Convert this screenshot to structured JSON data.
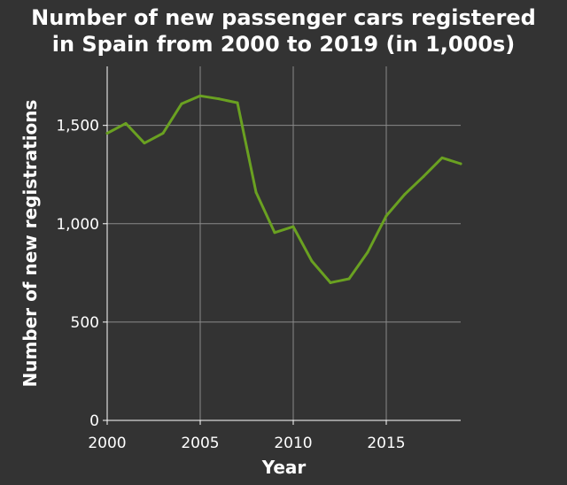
{
  "chart_data": {
    "type": "line",
    "title_lines": [
      "Number of new passenger cars registered",
      "in Spain from 2000 to 2019 (in 1,000s)"
    ],
    "xlabel": "Year",
    "ylabel": "Number of new registrations",
    "xlim": [
      2000,
      2019
    ],
    "ylim": [
      0,
      1800
    ],
    "x_ticks": [
      2000,
      2005,
      2010,
      2015
    ],
    "x_tick_labels": [
      "2000",
      "2005",
      "2010",
      "2015"
    ],
    "y_ticks": [
      0,
      500,
      1000,
      1500
    ],
    "y_tick_labels": [
      "0",
      "500",
      "1,000",
      "1,500"
    ],
    "grid": true,
    "series": [
      {
        "x": [
          2000,
          2001,
          2002,
          2003,
          2004,
          2005,
          2006,
          2007,
          2008,
          2009,
          2010,
          2011,
          2012,
          2013,
          2014,
          2015,
          2016,
          2017,
          2018,
          2019
        ],
        "y": [
          1460,
          1510,
          1410,
          1460,
          1610,
          1650,
          1635,
          1615,
          1160,
          955,
          985,
          810,
          700,
          720,
          855,
          1040,
          1150,
          1240,
          1335,
          1305
        ],
        "color": "#6aa121"
      }
    ],
    "colors": {
      "background": "#333333",
      "text": "#ffffff",
      "grid": "#8a8a8a",
      "axis": "#ffffff",
      "line": "#6aa121"
    }
  }
}
